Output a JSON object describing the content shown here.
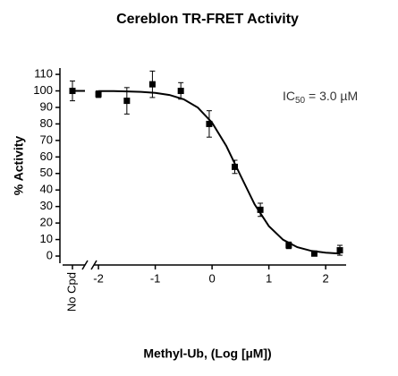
{
  "chart_data": {
    "type": "scatter",
    "title": "Cereblon TR-FRET Activity",
    "x_label": "Methyl-Ub, (Log [µM])",
    "y_label": "% Activity",
    "annotation": {
      "main": "IC",
      "subscript": "50",
      "rest": " = 3.0 µM"
    },
    "control": {
      "label": "No Cpd",
      "value": 100,
      "error": 6
    },
    "points": {
      "color": "#000000",
      "x": [
        -2.0,
        -1.5,
        -1.05,
        -0.55,
        -0.05,
        0.4,
        0.85,
        1.35,
        1.8,
        2.25
      ],
      "values": [
        98,
        94,
        104,
        100,
        80,
        54,
        28,
        6.5,
        1.5,
        3.5
      ],
      "errors": [
        2,
        8,
        8,
        5,
        8,
        4,
        4,
        2,
        1,
        3
      ]
    },
    "curve": {
      "color": "#000000",
      "x": [
        -2,
        -1.75,
        -1.5,
        -1.25,
        -1,
        -0.75,
        -0.5,
        -0.25,
        0,
        0.25,
        0.5,
        0.75,
        1,
        1.25,
        1.5,
        1.75,
        2,
        2.25
      ],
      "values": [
        99.9,
        99.9,
        99.7,
        99.4,
        98.8,
        97.5,
        94.9,
        89.9,
        80.8,
        66.7,
        48.8,
        31.3,
        18.1,
        9.9,
        5.4,
        3.1,
        2.0,
        1.5
      ]
    },
    "xlim": [
      -2.08,
      2.36
    ],
    "xticks": [
      -2,
      -1,
      0,
      1,
      2
    ],
    "ylim": [
      -4,
      114
    ],
    "yticks": [
      0,
      10,
      20,
      30,
      40,
      50,
      60,
      70,
      80,
      90,
      100,
      110
    ]
  }
}
